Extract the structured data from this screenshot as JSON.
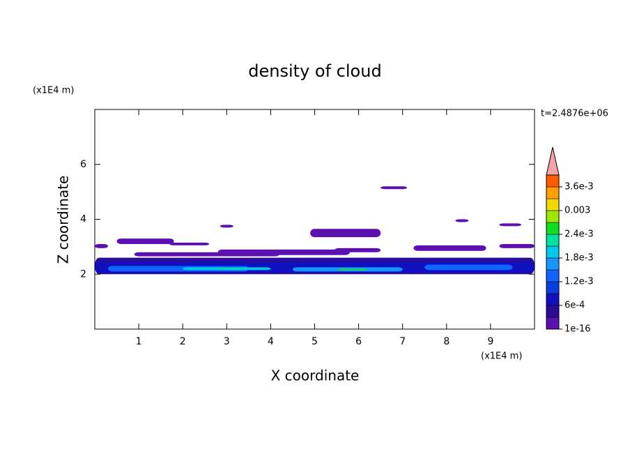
{
  "chart_data": {
    "type": "contour",
    "title": "density of cloud",
    "xlabel": "X coordinate",
    "ylabel": "Z coordinate",
    "xunit": "(x1E4 m)",
    "yunit": "(x1E4 m)",
    "time_label": "t=2.4876e+06",
    "xlim": [
      0,
      10
    ],
    "ylim": [
      0,
      8
    ],
    "xticks": [
      1,
      2,
      3,
      4,
      5,
      6,
      7,
      8,
      9
    ],
    "yticks": [
      2,
      4,
      6
    ],
    "colorbar": {
      "levels": [
        1e-16,
        0.0003,
        0.0006,
        0.0009,
        0.0012,
        0.0015,
        0.0018,
        0.0021,
        0.0024,
        0.0027,
        0.003,
        0.0033,
        0.0036,
        0.0039
      ],
      "colors": [
        "#5c10b0",
        "#2a0c98",
        "#1010c0",
        "#0a3ce0",
        "#1064ff",
        "#1896ff",
        "#00c8e6",
        "#00e0a0",
        "#10e020",
        "#a0e600",
        "#f0d800",
        "#ffa000",
        "#ff5a00"
      ],
      "extend_color": "#f4a4a4",
      "ticks": [
        1e-16,
        {
          "value": 0.0006,
          "label": "6e-4"
        },
        {
          "value": 0.0012,
          "label": "1.2e-3"
        },
        {
          "value": 0.0018,
          "label": "1.8e-3"
        },
        {
          "value": 0.0024,
          "label": "2.4e-3"
        },
        0.003,
        {
          "value": 0.0036,
          "label": "3.6e-3"
        }
      ]
    },
    "patches": [
      {
        "x": [
          0,
          10
        ],
        "z": [
          2.0,
          2.6
        ],
        "value": 0.0004
      },
      {
        "x": [
          0,
          10
        ],
        "z": [
          2.05,
          2.45
        ],
        "value": 0.0008
      },
      {
        "x": [
          0.3,
          3.5
        ],
        "z": [
          2.1,
          2.3
        ],
        "value": 0.0014
      },
      {
        "x": [
          4.5,
          7
        ],
        "z": [
          2.1,
          2.25
        ],
        "value": 0.0016
      },
      {
        "x": [
          7.5,
          9.5
        ],
        "z": [
          2.15,
          2.35
        ],
        "value": 0.0014
      },
      {
        "x": [
          2,
          4
        ],
        "z": [
          2.15,
          2.25
        ],
        "value": 0.002
      },
      {
        "x": [
          2.8,
          3.4
        ],
        "z": [
          2.18,
          2.23
        ],
        "value": 0.0022
      },
      {
        "x": [
          5.5,
          6.2
        ],
        "z": [
          2.15,
          2.2
        ],
        "value": 0.0025
      },
      {
        "x": [
          0,
          0.3
        ],
        "z": [
          2.95,
          3.1
        ],
        "value": 0.0001
      },
      {
        "x": [
          0.5,
          1.8
        ],
        "z": [
          3.1,
          3.3
        ],
        "value": 0.0001
      },
      {
        "x": [
          1.7,
          2.6
        ],
        "z": [
          3.05,
          3.15
        ],
        "value": 0.0001
      },
      {
        "x": [
          2.85,
          3.15
        ],
        "z": [
          3.7,
          3.8
        ],
        "value": 0.0001
      },
      {
        "x": [
          4.9,
          6.5
        ],
        "z": [
          3.35,
          3.65
        ],
        "value": 0.0001
      },
      {
        "x": [
          6.5,
          7.1
        ],
        "z": [
          5.1,
          5.2
        ],
        "value": 0.0001
      },
      {
        "x": [
          0.9,
          4.2
        ],
        "z": [
          2.65,
          2.8
        ],
        "value": 0.0001
      },
      {
        "x": [
          2.8,
          5.8
        ],
        "z": [
          2.7,
          2.9
        ],
        "value": 0.0001
      },
      {
        "x": [
          5.45,
          6.5
        ],
        "z": [
          2.8,
          2.95
        ],
        "value": 0.0001
      },
      {
        "x": [
          7.25,
          8.9
        ],
        "z": [
          2.85,
          3.05
        ],
        "value": 0.0001
      },
      {
        "x": [
          9.2,
          10
        ],
        "z": [
          2.95,
          3.1
        ],
        "value": 0.0001
      },
      {
        "x": [
          8.2,
          8.5
        ],
        "z": [
          3.9,
          4.0
        ],
        "value": 0.0001
      },
      {
        "x": [
          9.2,
          9.7
        ],
        "z": [
          3.75,
          3.85
        ],
        "value": 0.0001
      }
    ]
  }
}
